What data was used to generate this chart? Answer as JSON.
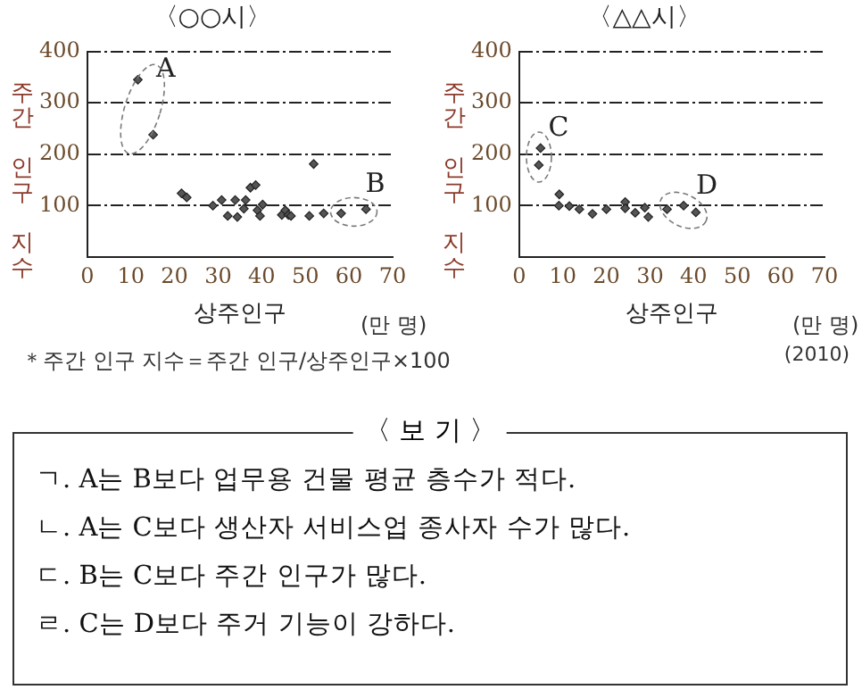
{
  "chart_data": [
    {
      "type": "scatter",
      "title": "〈○○시〉",
      "xlabel": "상주인구",
      "ylabel": "주간 인구 지수",
      "xlim": [
        0,
        70
      ],
      "xticks": [
        0,
        10,
        20,
        30,
        40,
        50,
        60,
        70
      ],
      "ylim": [
        0,
        400
      ],
      "yticks": [
        100,
        200,
        300,
        400
      ],
      "grid": "y",
      "marker": "diamond",
      "legend": false,
      "series": [
        {
          "color": "#555555",
          "x": [
            11.6,
            15.1,
            21.6,
            22.8,
            28.8,
            30.8,
            32.2,
            33.9,
            34.4,
            35.9,
            36.3,
            37.4,
            38.6,
            39,
            39.6,
            40.2,
            44.6,
            45.4,
            46.1,
            46.7,
            50.9,
            51.9,
            54.2,
            58.2,
            63.9
          ],
          "values": [
            345,
            238,
            124,
            116,
            100,
            111,
            80,
            111,
            78,
            94,
            111,
            135,
            140,
            91,
            80,
            102,
            82,
            91,
            82,
            80,
            80,
            181,
            85,
            85,
            93
          ]
        }
      ],
      "annotations": [
        "A",
        "B",
        "(만 명)",
        "＊주간 인구 지수＝주간 인구/상주인구×100"
      ]
    },
    {
      "type": "scatter",
      "title": "〈△△시〉",
      "xlabel": "상주인구",
      "ylabel": "주간 인구 지수",
      "xlim": [
        0,
        70
      ],
      "xticks": [
        0,
        10,
        20,
        30,
        40,
        50,
        60,
        70
      ],
      "ylim": [
        0,
        400
      ],
      "yticks": [
        100,
        200,
        300,
        400
      ],
      "grid": "y",
      "marker": "diamond",
      "legend": false,
      "series": [
        {
          "color": "#555555",
          "x": [
            4.9,
            4.5,
            9.2,
            9.1,
            11.5,
            13.8,
            16.8,
            20,
            24.3,
            24.3,
            26.6,
            28.8,
            29.6,
            33.9,
            37.7,
            40.5
          ],
          "values": [
            212,
            179,
            122,
            100,
            99,
            93,
            84,
            93,
            107,
            95,
            86,
            96,
            78,
            93,
            100,
            87
          ]
        }
      ],
      "annotations": [
        "C",
        "D",
        "(만 명)",
        "(2010)"
      ]
    },
    {
      "type": "other",
      "title": "〈 보 기 〉",
      "annotations": [
        "ㄱ. A는 B보다 업무용 건물 평균 층수가 적다.",
        "ㄴ. A는 C보다 생산자 서비스업 종사자 수가 많다.",
        "ㄷ. B는 C보다 주간 인구가 많다.",
        "ㄹ. C는 D보다 주거 기능이 강하다."
      ]
    }
  ]
}
